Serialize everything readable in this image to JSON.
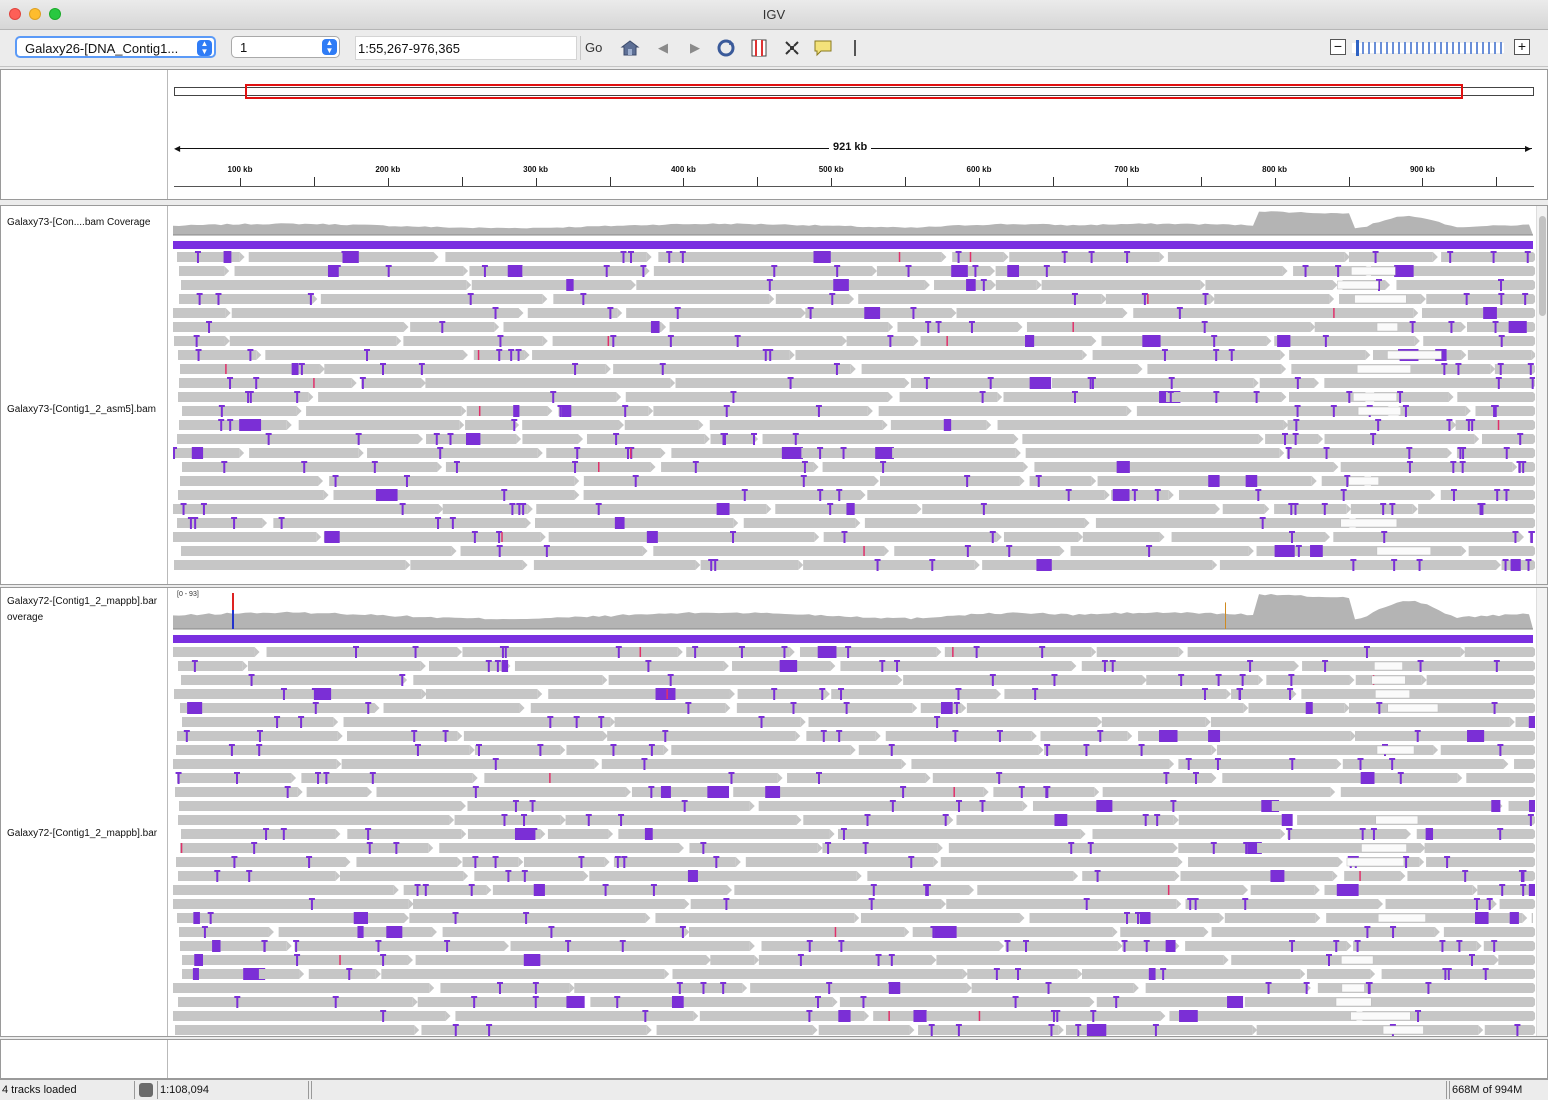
{
  "window": {
    "title": "IGV"
  },
  "toolbar": {
    "genome_select": "Galaxy26-[DNA_Contig1...",
    "chromosome_select": "1",
    "locus": "1:55,267-976,365",
    "go_label": "Go",
    "icons": [
      "home-icon",
      "back-icon",
      "forward-icon",
      "refresh-icon",
      "region-of-interest-icon",
      "resize-icon",
      "popup-info-icon",
      "ruler-line-icon"
    ]
  },
  "ruler": {
    "span_label": "921 kb",
    "ticks": [
      "100 kb",
      "200 kb",
      "300 kb",
      "400 kb",
      "500 kb",
      "600 kb",
      "700 kb",
      "800 kb",
      "900 kb"
    ]
  },
  "tracks": {
    "track1_coverage": "Galaxy73-[Con....bam Coverage",
    "track1_alignments": "Galaxy73-[Contig1_2_asm5].bam",
    "track2_coverage_line1": "Galaxy72-[Contig1_2_mappb].bar",
    "track2_coverage_line2": "overage",
    "track2_range": "[0 - 93]",
    "track2_alignments": "Galaxy72-[Contig1_2_mappb].bar"
  },
  "status": {
    "tracks_loaded": "4 tracks loaded",
    "position": "1:108,094",
    "memory": "668M of 994M"
  },
  "colors": {
    "coverage": "#b4b4b4",
    "read": "#c6c6c6",
    "insertion": "#7b2fd6",
    "mismatch": "#e0306a",
    "roi": "#e01010",
    "accent": "#2f7cf6"
  }
}
